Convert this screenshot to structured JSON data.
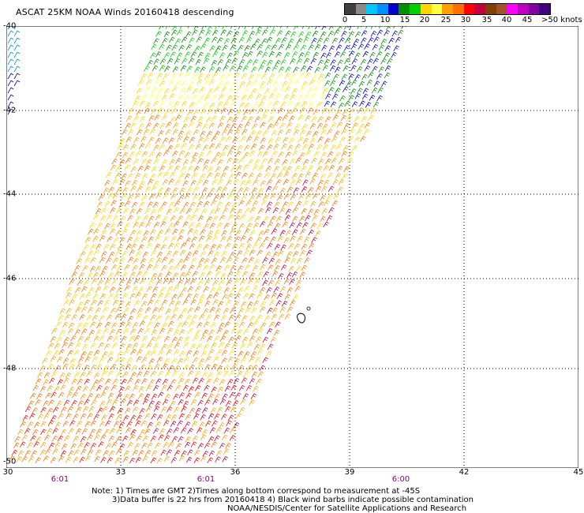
{
  "title": "ASCAT 25KM NOAA Winds 20160418 descending",
  "colorbar": {
    "colors": [
      "#404040",
      "#8a8a8a",
      "#00c8ff",
      "#0090ff",
      "#0000d0",
      "#009000",
      "#00d000",
      "#ffd700",
      "#ffff40",
      "#ffa000",
      "#ff7000",
      "#ff0000",
      "#c00040",
      "#804000",
      "#a0522d",
      "#ff00ff",
      "#c000c0",
      "#8000a0",
      "#400080"
    ],
    "labels": [
      "0",
      "5",
      "10",
      "15",
      "20",
      "25",
      "30",
      "35",
      "40",
      "45"
    ],
    "unit": ">50 knots"
  },
  "map": {
    "lat_labels": [
      "-40",
      "-42",
      "-44",
      "-46",
      "-48",
      "-50"
    ],
    "lon_labels": [
      "30",
      "33",
      "36",
      "39",
      "42",
      "45"
    ],
    "time_labels": [
      "6:01",
      "6:01",
      "6:00"
    ]
  },
  "notes": {
    "line1": "Note: 1) Times are GMT 2)Times along bottom correspond to measurement at -45S",
    "line2": "3)Data buffer is 22 hrs from 20160418 4) Black wind barbs indicate possible contamination",
    "line3": "NOAA/NESDIS/Center for Satellite Applications and Research"
  }
}
